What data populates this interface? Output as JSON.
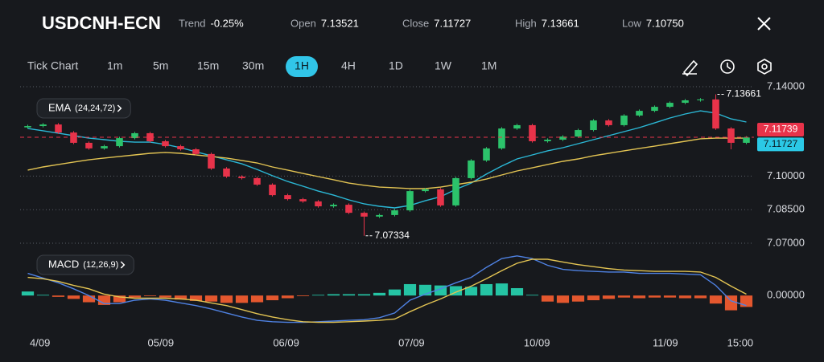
{
  "header": {
    "symbol": "USDCNH-ECN",
    "stats": [
      {
        "label": "Trend",
        "value": "-0.25%"
      },
      {
        "label": "Open",
        "value": "7.13521"
      },
      {
        "label": "Close",
        "value": "7.11727"
      },
      {
        "label": "High",
        "value": "7.13661"
      },
      {
        "label": "Low",
        "value": "7.10750"
      }
    ]
  },
  "toolbar": {
    "timeframes": [
      "Tick Chart",
      "1m",
      "5m",
      "15m",
      "30m",
      "1H",
      "4H",
      "1D",
      "1W",
      "1M"
    ],
    "selected": "1H"
  },
  "chart_data": [
    {
      "type": "candlestick",
      "indicator": "EMA",
      "indicator_params": "(24,24,72)",
      "xlim": [
        -0.5,
        47.5
      ],
      "ylim": [
        7.07,
        7.14
      ],
      "yticks": [
        {
          "value": 7.14,
          "label": "7.14000"
        },
        {
          "value": 7.1,
          "label": "7.10000"
        },
        {
          "value": 7.085,
          "label": "7.08500"
        },
        {
          "value": 7.07,
          "label": "7.07000"
        }
      ],
      "grid": true,
      "up_color": "#2cc36b",
      "down_color": "#e8334a",
      "open": [
        7.1218,
        7.1224,
        7.1231,
        7.1195,
        7.1149,
        7.1124,
        7.1134,
        7.117,
        7.1192,
        7.1156,
        7.1134,
        7.112,
        7.1099,
        7.1034,
        7.0998,
        7.0991,
        7.0962,
        7.0915,
        7.0897,
        7.0887,
        7.0865,
        7.0872,
        7.0836,
        7.0819,
        7.0826,
        7.0847,
        7.0933,
        7.0941,
        7.0869,
        7.0991,
        7.107,
        7.1124,
        7.1213,
        7.1228,
        7.1156,
        7.1163,
        7.1177,
        7.1206,
        7.1249,
        7.1228,
        7.1271,
        7.1292,
        7.131,
        7.1328,
        7.1339,
        7.1343,
        7.1213,
        7.1149
      ],
      "high": [
        7.123,
        7.1237,
        7.1237,
        7.1201,
        7.1155,
        7.114,
        7.1176,
        7.1198,
        7.1198,
        7.1162,
        7.114,
        7.1126,
        7.1105,
        7.104,
        7.1004,
        7.0997,
        7.0968,
        7.0921,
        7.0903,
        7.0893,
        7.0878,
        7.0878,
        7.0842,
        7.0832,
        7.0853,
        7.0939,
        7.0947,
        7.0947,
        7.0997,
        7.1076,
        7.113,
        7.1219,
        7.1234,
        7.1234,
        7.1169,
        7.1183,
        7.1212,
        7.1255,
        7.1255,
        7.1277,
        7.1298,
        7.1316,
        7.1334,
        7.1345,
        7.1349,
        7.13661,
        7.1219,
        7.1179
      ],
      "low": [
        7.1212,
        7.1218,
        7.1189,
        7.1143,
        7.1118,
        7.1118,
        7.1128,
        7.1164,
        7.115,
        7.1128,
        7.1114,
        7.1093,
        7.1028,
        7.0992,
        7.0985,
        7.0956,
        7.0909,
        7.0891,
        7.0881,
        7.0859,
        7.0859,
        7.083,
        7.07334,
        7.0813,
        7.082,
        7.0841,
        7.0927,
        7.0863,
        7.0863,
        7.0985,
        7.1064,
        7.1118,
        7.1207,
        7.115,
        7.115,
        7.1157,
        7.1171,
        7.12,
        7.1222,
        7.1222,
        7.1265,
        7.1286,
        7.1304,
        7.1322,
        7.1333,
        7.1207,
        7.112,
        7.1143
      ],
      "close": [
        7.1224,
        7.1231,
        7.1195,
        7.1149,
        7.1124,
        7.1134,
        7.117,
        7.1192,
        7.1156,
        7.1134,
        7.112,
        7.1099,
        7.1034,
        7.0998,
        7.0991,
        7.0962,
        7.0915,
        7.0897,
        7.0887,
        7.0865,
        7.0872,
        7.0836,
        7.0819,
        7.0826,
        7.0847,
        7.0933,
        7.0941,
        7.0869,
        7.0991,
        7.107,
        7.1124,
        7.1213,
        7.1228,
        7.1156,
        7.1163,
        7.1177,
        7.1206,
        7.1249,
        7.1228,
        7.1271,
        7.1292,
        7.131,
        7.1328,
        7.1339,
        7.1343,
        7.1213,
        7.1149,
        7.11727
      ],
      "overlays": [
        {
          "color": "#2bb8d6",
          "values": [
            7.1213,
            7.1203,
            7.1192,
            7.1181,
            7.117,
            7.1163,
            7.1156,
            7.1152,
            7.1152,
            7.1142,
            7.1127,
            7.1109,
            7.1091,
            7.1073,
            7.1055,
            7.103,
            7.1002,
            7.0976,
            7.0955,
            7.0933,
            7.0915,
            7.0894,
            7.0876,
            7.0865,
            7.0858,
            7.0869,
            7.089,
            7.0908,
            7.0941,
            7.0969,
            7.1009,
            7.1045,
            7.1077,
            7.1095,
            7.1113,
            7.1127,
            7.1145,
            7.1163,
            7.1181,
            7.1199,
            7.1217,
            7.1238,
            7.126,
            7.1278,
            7.1292,
            7.1282,
            7.1256,
            7.1242
          ]
        },
        {
          "color": "#e3c453",
          "values": [
            7.1027,
            7.1041,
            7.1052,
            7.1063,
            7.1073,
            7.1081,
            7.1088,
            7.1095,
            7.1102,
            7.1106,
            7.1102,
            7.1095,
            7.1088,
            7.1081,
            7.107,
            7.1059,
            7.1041,
            7.1027,
            7.1012,
            7.0998,
            7.0984,
            7.0969,
            7.0959,
            7.0951,
            7.0948,
            7.0944,
            7.0944,
            7.0951,
            7.0962,
            7.0973,
            7.0987,
            7.1005,
            7.1023,
            7.1037,
            7.1052,
            7.1066,
            7.1077,
            7.1091,
            7.1102,
            7.1113,
            7.1124,
            7.1134,
            7.1145,
            7.1156,
            7.1167,
            7.117,
            7.117,
            7.117
          ]
        }
      ],
      "annotations": [
        7.13661,
        7.07334
      ],
      "price_tags": [
        {
          "value": 7.11739,
          "color": "#e8334a"
        },
        {
          "value": 7.11727,
          "color": "#2bc9e6"
        }
      ]
    },
    {
      "type": "macd",
      "indicator": "MACD",
      "indicator_params": "(12,26,9)",
      "xlim": [
        -0.5,
        47.5
      ],
      "ylim": [
        -0.005,
        0.006
      ],
      "yticks": [
        {
          "value": 0,
          "label": "0.00000"
        }
      ],
      "positive_color": "#25c4a4",
      "negative_color": "#e4572e",
      "values": [
        0.0006,
        0.0001,
        -0.0002,
        -0.0005,
        -0.001,
        -0.0014,
        -0.001,
        -0.0003,
        -0.0001,
        -0.0003,
        -0.0006,
        -0.0008,
        -0.0009,
        -0.0011,
        -0.0011,
        -0.001,
        -0.0007,
        -0.0004,
        -0.0001,
        0.0001,
        0.0002,
        0.0002,
        0.0002,
        0.0004,
        0.0009,
        0.0017,
        0.0016,
        0.0015,
        0.0014,
        0.0013,
        0.0017,
        0.0018,
        0.0011,
        0.0001,
        -0.0009,
        -0.0011,
        -0.0009,
        -0.0007,
        -0.0005,
        -0.0003,
        -0.0004,
        -0.0003,
        -0.0003,
        -0.0004,
        -0.0004,
        -0.0012,
        -0.0022,
        -0.0017
      ],
      "overlays": [
        {
          "color": "#4f82e3",
          "values": [
            0.0033,
            0.0026,
            0.0019,
            0.001,
            0,
            -0.0012,
            -0.0012,
            -0.0007,
            -0.0005,
            -0.0007,
            -0.0011,
            -0.0015,
            -0.002,
            -0.0026,
            -0.0032,
            -0.0037,
            -0.0039,
            -0.004,
            -0.004,
            -0.0039,
            -0.0038,
            -0.0037,
            -0.0036,
            -0.0033,
            -0.0026,
            -0.0007,
            0.0002,
            0.001,
            0.0019,
            0.0027,
            0.0042,
            0.0055,
            0.0059,
            0.0055,
            0.0045,
            0.0039,
            0.0037,
            0.0036,
            0.0035,
            0.0035,
            0.0033,
            0.0033,
            0.0033,
            0.0032,
            0.0031,
            0.0015,
            -0.0008,
            -0.0015
          ]
        },
        {
          "color": "#e3c453",
          "values": [
            0.0027,
            0.0025,
            0.0021,
            0.0015,
            0.001,
            0.0002,
            -0.0002,
            -0.0004,
            -0.0004,
            -0.0004,
            -0.0005,
            -0.0007,
            -0.0011,
            -0.0015,
            -0.0021,
            -0.0027,
            -0.0032,
            -0.0036,
            -0.0039,
            -0.004,
            -0.004,
            -0.0039,
            -0.0038,
            -0.0037,
            -0.0035,
            -0.0024,
            -0.0014,
            -0.0005,
            0.0005,
            0.0014,
            0.0025,
            0.0037,
            0.0048,
            0.0054,
            0.0054,
            0.005,
            0.0046,
            0.0043,
            0.004,
            0.0038,
            0.0037,
            0.0036,
            0.0036,
            0.0036,
            0.0035,
            0.0027,
            0.0014,
            0.0002
          ]
        }
      ],
      "xticks": [
        {
          "value": 0.8,
          "label": "4/09"
        },
        {
          "value": 8.7,
          "label": "05/09"
        },
        {
          "value": 16.9,
          "label": "06/09"
        },
        {
          "value": 25.1,
          "label": "07/09"
        },
        {
          "value": 33.3,
          "label": "10/09"
        },
        {
          "value": 41.7,
          "label": "11/09"
        },
        {
          "value": 46.6,
          "label": "15:00"
        }
      ]
    }
  ]
}
